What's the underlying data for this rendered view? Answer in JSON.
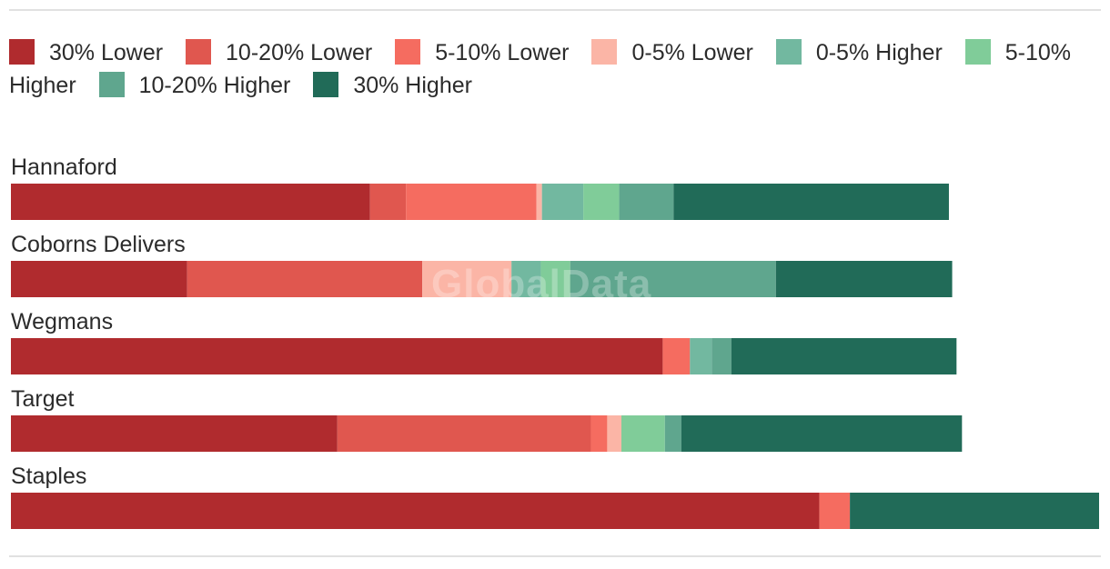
{
  "chart_data": {
    "type": "bar",
    "orientation": "horizontal",
    "stacked": true,
    "title": "",
    "xlabel": "",
    "ylabel": "",
    "legend_position": "top",
    "grid": false,
    "watermark": "GlobalData",
    "categories": [
      "Hannaford",
      "Coborns Delivers",
      "Wegmans",
      "Target",
      "Staples"
    ],
    "series": [
      {
        "name": "30% Lower",
        "color": "#b02b2e",
        "values": [
          33.0,
          16.2,
          59.9,
          30.0,
          74.3
        ]
      },
      {
        "name": "10-20% Lower",
        "color": "#e0574f",
        "values": [
          3.3,
          21.6,
          0,
          23.3,
          0
        ]
      },
      {
        "name": "5-10% Lower",
        "color": "#f56c60",
        "values": [
          12.0,
          0,
          2.5,
          1.5,
          2.8
        ]
      },
      {
        "name": "0-5% Lower",
        "color": "#fbb5a6",
        "values": [
          0.5,
          8.2,
          0,
          1.3,
          0
        ]
      },
      {
        "name": "0-5% Higher",
        "color": "#72b8a0",
        "values": [
          3.8,
          2.7,
          2.0,
          0,
          0
        ]
      },
      {
        "name": "5-10% Higher",
        "color": "#80cc99",
        "values": [
          3.3,
          2.7,
          0,
          4.0,
          0
        ]
      },
      {
        "name": "10-20% Higher",
        "color": "#5fa68e",
        "values": [
          5.0,
          18.9,
          1.8,
          1.5,
          0
        ]
      },
      {
        "name": "30% Higher",
        "color": "#216b58",
        "values": [
          25.3,
          16.2,
          20.7,
          25.8,
          22.9
        ]
      }
    ]
  }
}
